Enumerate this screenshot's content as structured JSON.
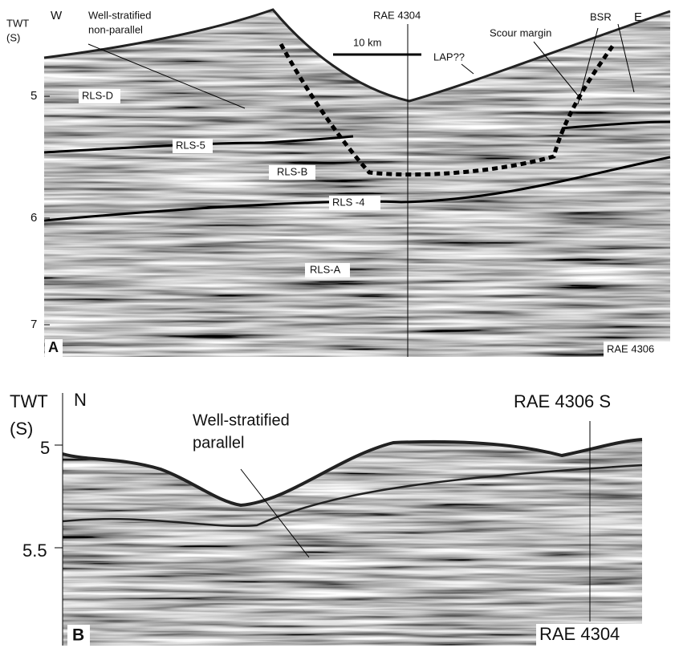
{
  "panel_a": {
    "label": "A",
    "axis_title": "TWT",
    "axis_unit": "(S)",
    "ticks": [
      5,
      6,
      7
    ],
    "west": "W",
    "east": "E",
    "scale_bar": "10 km",
    "well_label": "RAE 4304",
    "tie_label": "RAE 4306",
    "facies": [
      "Well-stratified",
      "non-parallel"
    ],
    "lap": "LAP??",
    "scour": "Scour margin",
    "bsr": "BSR",
    "units": [
      "RLS-D",
      "RLS-5",
      "RLS-B",
      "RLS -4",
      "RLS-A"
    ]
  },
  "panel_b": {
    "label": "B",
    "axis_title": "TWT",
    "axis_unit": "(S)",
    "ticks": [
      5,
      5.5
    ],
    "north": "N",
    "well_label": "RAE 4306 S",
    "tie_label": "RAE 4304",
    "facies": [
      "Well-stratified",
      "parallel"
    ]
  }
}
